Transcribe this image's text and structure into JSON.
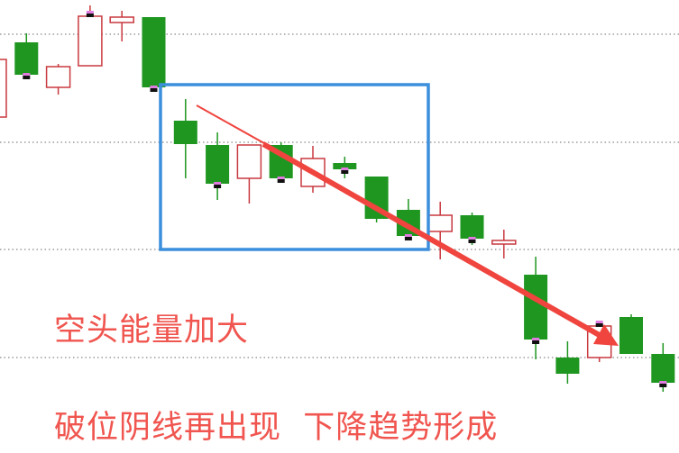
{
  "chart_data": {
    "type": "candlestick",
    "title": "",
    "xlabel": "",
    "ylabel": "",
    "ylim": [
      0,
      503
    ],
    "grid": {
      "horizontal": true,
      "style": "dotted",
      "levels": [
        465,
        345,
        226,
        106
      ]
    },
    "up_color": "#c8393f",
    "down_color": "#1e9620",
    "candles": [
      {
        "open": 373,
        "close": 437,
        "high": 437,
        "low": 373
      },
      {
        "open": 456,
        "close": 420,
        "high": 466,
        "low": 420,
        "marker": true
      },
      {
        "open": 406,
        "close": 429,
        "high": 432,
        "low": 398
      },
      {
        "open": 430,
        "close": 485,
        "high": 497,
        "low": 430,
        "marker": true
      },
      {
        "open": 478,
        "close": 484,
        "high": 491,
        "low": 457
      },
      {
        "open": 484,
        "close": 406,
        "high": 484,
        "low": 406,
        "marker": true
      },
      {
        "open": 369,
        "close": 343,
        "high": 393,
        "low": 305
      },
      {
        "open": 342,
        "close": 299,
        "high": 356,
        "low": 281,
        "marker": true
      },
      {
        "open": 305,
        "close": 342,
        "high": 342,
        "low": 277
      },
      {
        "open": 342,
        "close": 305,
        "high": 345,
        "low": 303,
        "marker": true
      },
      {
        "open": 296,
        "close": 327,
        "high": 341,
        "low": 289
      },
      {
        "open": 322,
        "close": 315,
        "high": 329,
        "low": 305,
        "marker": true
      },
      {
        "open": 307,
        "close": 260,
        "high": 307,
        "low": 256
      },
      {
        "open": 270,
        "close": 241,
        "high": 282,
        "low": 241,
        "marker": true
      },
      {
        "open": 246,
        "close": 264,
        "high": 279,
        "low": 215
      },
      {
        "open": 264,
        "close": 238,
        "high": 267,
        "low": 231,
        "marker": true
      },
      {
        "open": 232,
        "close": 236,
        "high": 248,
        "low": 216
      },
      {
        "open": 198,
        "close": 126,
        "high": 218,
        "low": 104,
        "marker": true
      },
      {
        "open": 106,
        "close": 88,
        "high": 124,
        "low": 77
      },
      {
        "open": 106,
        "close": 141,
        "high": 145,
        "low": 101,
        "marker": true
      },
      {
        "open": 151,
        "close": 110,
        "high": 154,
        "low": 110
      },
      {
        "open": 110,
        "close": 78,
        "high": 122,
        "low": 68,
        "marker": true
      }
    ],
    "annotations": {
      "box_color": "#3b8fdc",
      "arrow_color": "#f0443e",
      "text_1": "空头能量加大",
      "text_2": "破位阴线再出现  下降趋势形成"
    }
  }
}
